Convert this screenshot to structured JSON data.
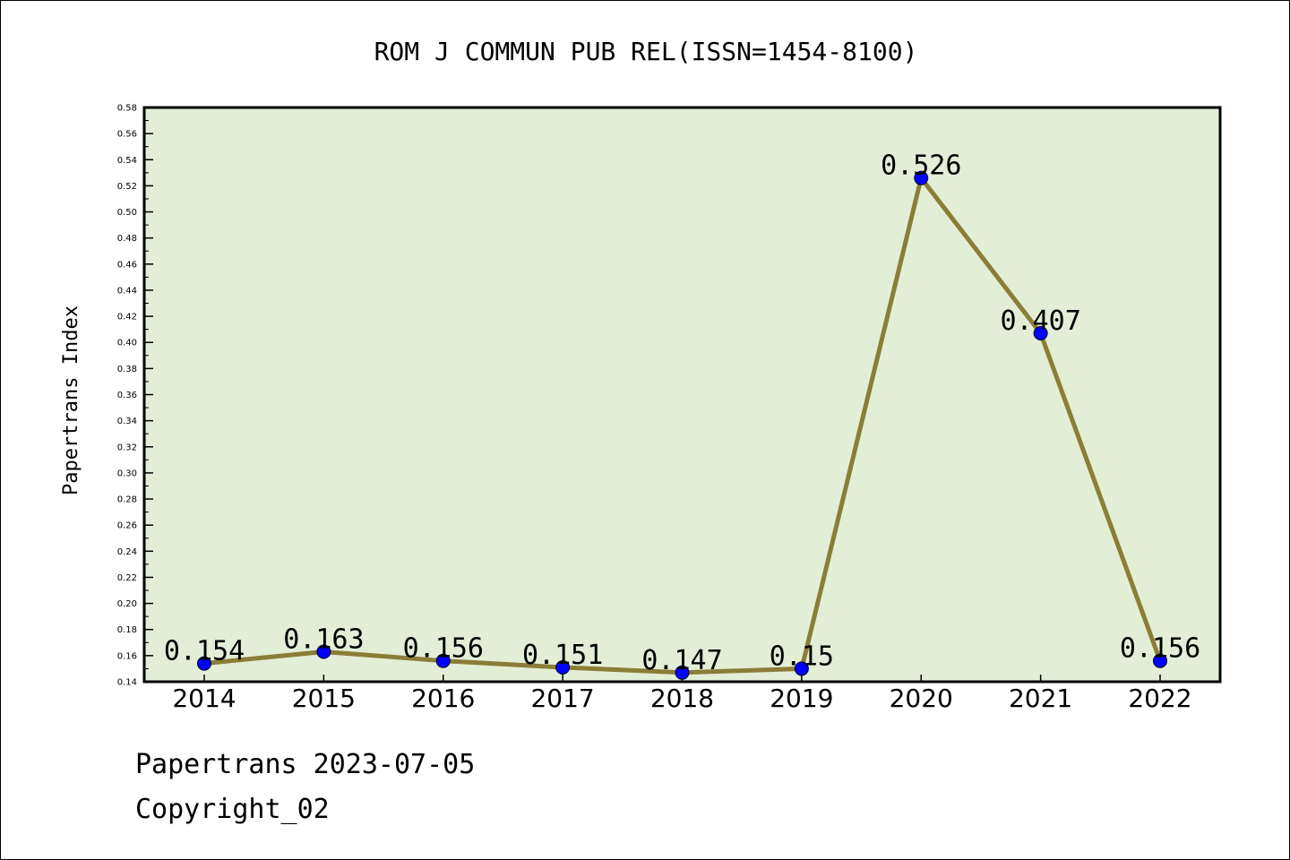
{
  "chart_data": {
    "type": "line",
    "title": "ROM J COMMUN PUB REL(ISSN=1454-8100)",
    "ylabel": "Papertrans Index",
    "xlabel": "",
    "categories": [
      "2014",
      "2015",
      "2016",
      "2017",
      "2018",
      "2019",
      "2020",
      "2021",
      "2022"
    ],
    "series": [
      {
        "values": [
          0.154,
          0.163,
          0.156,
          0.151,
          0.147,
          0.15,
          0.526,
          0.407,
          0.156
        ]
      }
    ],
    "data_labels": [
      "0.154",
      "0.163",
      "0.156",
      "0.151",
      "0.147",
      "0.15",
      "0.526",
      "0.407",
      "0.156"
    ],
    "ylim": [
      0.14,
      0.58
    ],
    "ytick_step": 0.02,
    "grid": false,
    "colors": {
      "plot_background": "#e2efd6",
      "line": "#8b7d36",
      "marker": "#0000ff"
    }
  },
  "footer": {
    "stamp": "Papertrans 2023-07-05",
    "copyright": "Copyright_02"
  }
}
